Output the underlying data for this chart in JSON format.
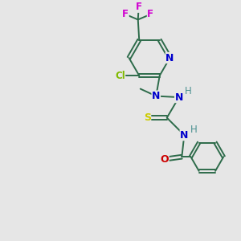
{
  "bg_color": "#e6e6e6",
  "bond_color": "#2d6b4a",
  "atom_colors": {
    "N": "#0000cc",
    "Cl": "#7fba00",
    "F": "#d000d0",
    "S": "#cccc00",
    "O": "#cc0000",
    "H": "#4a9090",
    "C_label": "#000000"
  }
}
